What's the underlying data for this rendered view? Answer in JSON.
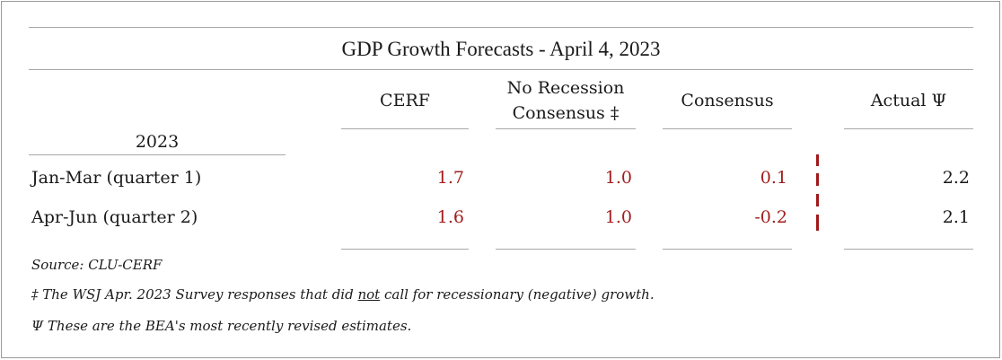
{
  "title": "GDP Growth Forecasts - April 4, 2023",
  "year_label": "2023",
  "columns": {
    "cerf": "CERF",
    "no_recession_line1": "No Recession",
    "no_recession_line2": "Consensus ‡",
    "consensus": "Consensus",
    "actual": "Actual Ψ"
  },
  "rows": [
    {
      "label": "Jan-Mar (quarter 1)",
      "cerf": "1.7",
      "no_recession": "1.0",
      "consensus": "0.1",
      "actual": "2.2"
    },
    {
      "label": "Apr-Jun (quarter 2)",
      "cerf": "1.6",
      "no_recession": "1.0",
      "consensus": "-0.2",
      "actual": "2.1"
    }
  ],
  "notes": {
    "source": "Source: CLU-CERF",
    "dagger_prefix": "‡ The WSJ Apr. 2023 Survey responses that did ",
    "dagger_emph": "not",
    "dagger_suffix": " call for recessionary (negative) growth.",
    "psi": "Ψ These are the BEA's most recently revised estimates."
  },
  "colors": {
    "forecast_text": "#a21e1e",
    "divider": "#a01818",
    "rule": "#a8a8a8"
  }
}
